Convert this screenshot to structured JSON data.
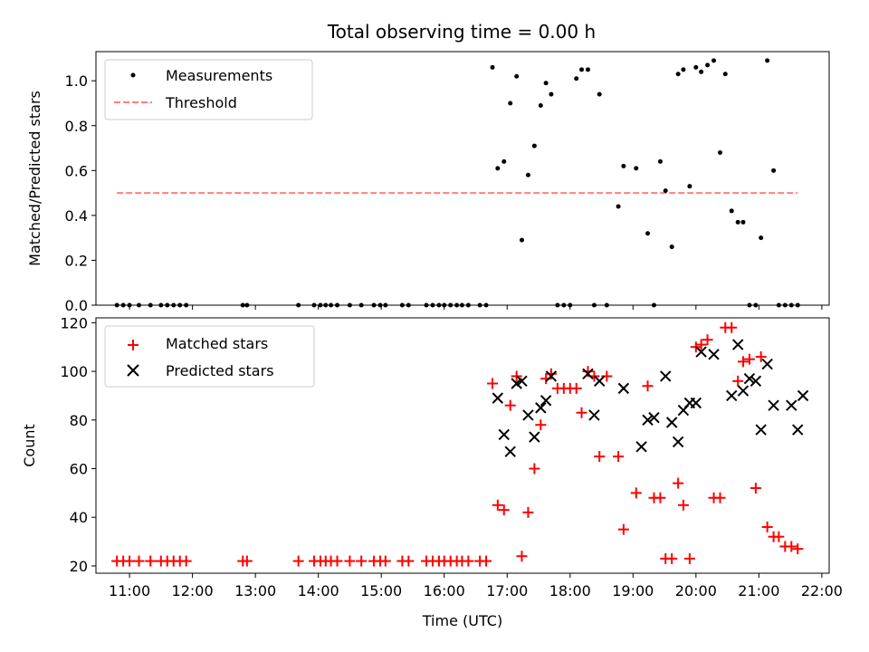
{
  "chart_data": [
    {
      "type": "scatter",
      "title": "Total observing time = 0.00 h",
      "ylabel": "Matched/Predicted stars",
      "xlabel": "",
      "xlim": [
        "10:28",
        "22:07"
      ],
      "ylim": [
        0,
        1.13
      ],
      "yticks": [
        "0.0",
        "0.2",
        "0.4",
        "0.6",
        "0.8",
        "1.0"
      ],
      "legend": "top-left",
      "series": [
        {
          "name": "Measurements",
          "color": "#000000",
          "marker": "dot",
          "x": [
            "10:48",
            "10:54",
            "11:00",
            "11:09",
            "11:20",
            "11:30",
            "11:36",
            "11:42",
            "11:48",
            "11:54",
            "12:48",
            "12:52",
            "13:41",
            "13:56",
            "14:02",
            "14:07",
            "14:12",
            "14:18",
            "14:30",
            "14:41",
            "14:53",
            "14:59",
            "15:04",
            "15:20",
            "15:26",
            "15:43",
            "15:49",
            "15:55",
            "16:00",
            "16:06",
            "16:12",
            "16:17",
            "16:23",
            "16:34",
            "16:40",
            "16:46",
            "16:51",
            "16:57",
            "17:03",
            "17:09",
            "17:14",
            "17:20",
            "17:26",
            "17:32",
            "17:37",
            "17:42",
            "17:48",
            "17:54",
            "18:00",
            "18:06",
            "18:11",
            "18:17",
            "18:23",
            "18:28",
            "18:35",
            "18:46",
            "18:51",
            "19:03",
            "19:14",
            "19:20",
            "19:26",
            "19:31",
            "19:37",
            "19:43",
            "19:48",
            "19:54",
            "20:00",
            "20:05",
            "20:11",
            "20:17",
            "20:23",
            "20:28",
            "20:34",
            "20:40",
            "20:45",
            "20:51",
            "20:57",
            "21:02",
            "21:08",
            "21:14",
            "21:19",
            "21:25",
            "21:31",
            "21:37"
          ],
          "y": [
            0,
            0,
            0,
            0,
            0,
            0,
            0,
            0,
            0,
            0,
            0,
            0,
            0,
            0,
            0,
            0,
            0,
            0,
            0,
            0,
            0,
            0,
            0,
            0,
            0,
            0,
            0,
            0,
            0,
            0,
            0,
            0,
            0,
            0,
            0,
            1.06,
            0.61,
            0.64,
            0.9,
            1.02,
            0.29,
            0.58,
            0.71,
            0.89,
            0.99,
            0.94,
            0,
            0,
            0,
            1.01,
            1.05,
            1.05,
            0,
            0.94,
            0,
            0.44,
            0.62,
            0.61,
            0.32,
            0,
            0.64,
            0.51,
            0.26,
            1.03,
            1.05,
            0.53,
            1.06,
            1.04,
            1.07,
            1.09,
            0.68,
            1.03,
            0.42,
            0.37,
            0.37,
            0,
            0,
            0.3,
            1.09,
            0.6,
            0,
            0,
            0,
            0
          ]
        },
        {
          "name": "Threshold",
          "color": "#ff7f7f",
          "style": "dashed",
          "x": [
            "10:48",
            "21:37"
          ],
          "y": [
            0.5,
            0.5
          ]
        }
      ]
    },
    {
      "type": "scatter",
      "title": "",
      "ylabel": "Count",
      "xlabel": "Time (UTC)",
      "xlim": [
        "10:28",
        "22:07"
      ],
      "ylim": [
        17,
        122
      ],
      "xticks": [
        "11:00",
        "12:00",
        "13:00",
        "14:00",
        "15:00",
        "16:00",
        "17:00",
        "18:00",
        "19:00",
        "20:00",
        "21:00",
        "22:00"
      ],
      "yticks": [
        "20",
        "40",
        "60",
        "80",
        "100",
        "120"
      ],
      "legend": "top-left",
      "series": [
        {
          "name": "Matched stars",
          "color": "#ff0000",
          "marker": "plus",
          "x": [
            "10:48",
            "10:54",
            "11:00",
            "11:09",
            "11:20",
            "11:30",
            "11:36",
            "11:42",
            "11:48",
            "11:54",
            "12:48",
            "12:52",
            "13:41",
            "13:56",
            "14:02",
            "14:07",
            "14:12",
            "14:18",
            "14:30",
            "14:41",
            "14:53",
            "14:59",
            "15:04",
            "15:20",
            "15:26",
            "15:43",
            "15:49",
            "15:55",
            "16:00",
            "16:06",
            "16:12",
            "16:17",
            "16:23",
            "16:34",
            "16:40",
            "16:46",
            "16:51",
            "16:57",
            "17:03",
            "17:09",
            "17:14",
            "17:20",
            "17:26",
            "17:32",
            "17:37",
            "17:42",
            "17:48",
            "17:54",
            "18:00",
            "18:06",
            "18:11",
            "18:17",
            "18:23",
            "18:28",
            "18:35",
            "18:46",
            "18:51",
            "19:03",
            "19:14",
            "19:20",
            "19:26",
            "19:31",
            "19:37",
            "19:43",
            "19:48",
            "19:54",
            "20:00",
            "20:05",
            "20:11",
            "20:17",
            "20:23",
            "20:28",
            "20:34",
            "20:40",
            "20:45",
            "20:51",
            "20:57",
            "21:02",
            "21:08",
            "21:14",
            "21:19",
            "21:25",
            "21:31",
            "21:37"
          ],
          "y": [
            22,
            22,
            22,
            22,
            22,
            22,
            22,
            22,
            22,
            22,
            22,
            22,
            22,
            22,
            22,
            22,
            22,
            22,
            22,
            22,
            22,
            22,
            22,
            22,
            22,
            22,
            22,
            22,
            22,
            22,
            22,
            22,
            22,
            22,
            22,
            95,
            45,
            43,
            86,
            98,
            24,
            42,
            60,
            78,
            97,
            99,
            93,
            93,
            93,
            93,
            83,
            100,
            98,
            65,
            98,
            65,
            35,
            50,
            94,
            48,
            48,
            23,
            23,
            54,
            45,
            23,
            110,
            111,
            113,
            48,
            48,
            118,
            118,
            96,
            104,
            105,
            52,
            106,
            36,
            32,
            32,
            28,
            28,
            27
          ]
        },
        {
          "name": "Predicted stars",
          "color": "#000000",
          "marker": "x",
          "x": [
            "16:51",
            "16:57",
            "17:03",
            "17:09",
            "17:14",
            "17:20",
            "17:26",
            "17:32",
            "17:37",
            "17:42",
            "18:17",
            "18:23",
            "18:28",
            "18:51",
            "19:08",
            "19:14",
            "19:20",
            "19:31",
            "19:37",
            "19:43",
            "19:48",
            "19:54",
            "20:00",
            "20:05",
            "20:17",
            "20:34",
            "20:40",
            "20:45",
            "20:51",
            "20:57",
            "21:02",
            "21:08",
            "21:14",
            "21:31",
            "21:37",
            "21:42"
          ],
          "y": [
            89,
            74,
            67,
            95,
            96,
            82,
            73,
            85,
            88,
            98,
            99,
            82,
            96,
            93,
            69,
            80,
            81,
            98,
            79,
            71,
            84,
            87,
            87,
            108,
            107,
            90,
            111,
            92,
            97,
            96,
            76,
            103,
            86,
            86,
            76,
            90
          ]
        }
      ]
    }
  ]
}
